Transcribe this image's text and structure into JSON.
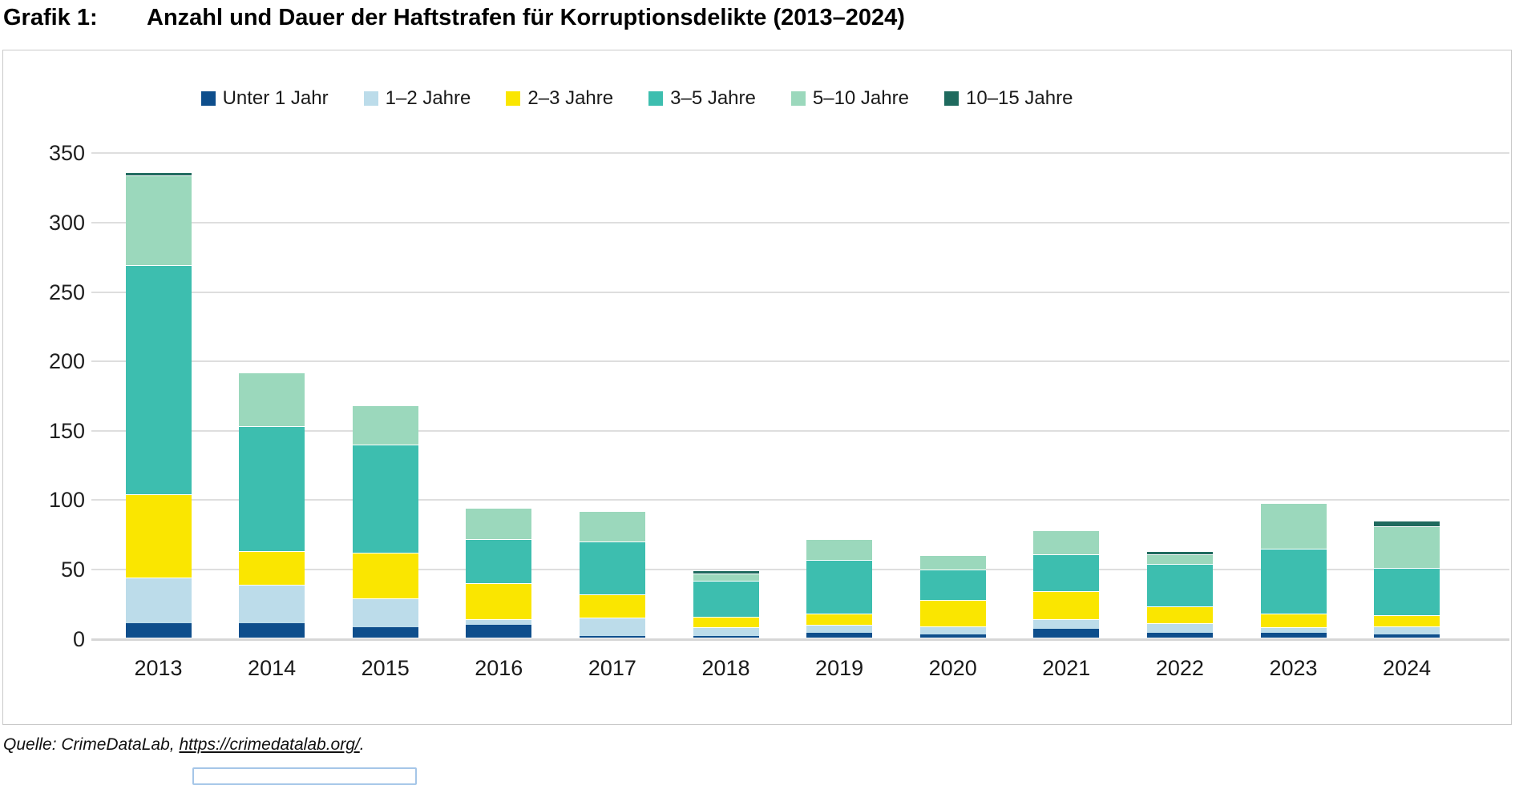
{
  "title": {
    "label": "Grafik 1:",
    "text": "Anzahl und Dauer der Haftstrafen für Korruptionsdelikte (2013–2024)"
  },
  "source": {
    "prefix": "Quelle: ",
    "name": "CrimeDataLab",
    "separator": ", ",
    "url": "https://crimedatalab.org/",
    "suffix": "."
  },
  "chart_data": {
    "type": "bar",
    "stacked": true,
    "title": "Anzahl und Dauer der Haftstrafen für Korruptionsdelikte (2013–2024)",
    "categories": [
      "2013",
      "2014",
      "2015",
      "2016",
      "2017",
      "2018",
      "2019",
      "2020",
      "2021",
      "2022",
      "2023",
      "2024"
    ],
    "series": [
      {
        "name": "Unter 1 Jahr",
        "color": "#0e4e8c",
        "values": [
          10,
          10,
          7,
          9,
          1,
          1,
          3,
          2,
          6,
          3,
          3,
          2
        ]
      },
      {
        "name": "1–2 Jahre",
        "color": "#bcdcea",
        "values": [
          33,
          28,
          21,
          4,
          13,
          6,
          6,
          6,
          7,
          7,
          4,
          6
        ]
      },
      {
        "name": "2–3 Jahre",
        "color": "#fae600",
        "values": [
          60,
          24,
          33,
          26,
          17,
          8,
          8,
          19,
          20,
          12,
          10,
          8
        ]
      },
      {
        "name": "3–5 Jahre",
        "color": "#3dbeaf",
        "values": [
          165,
          90,
          78,
          32,
          38,
          26,
          39,
          22,
          27,
          31,
          47,
          34
        ]
      },
      {
        "name": "5–10 Jahre",
        "color": "#9bd8bc",
        "values": [
          65,
          39,
          28,
          22,
          22,
          5,
          15,
          10,
          17,
          7,
          33,
          30
        ]
      },
      {
        "name": "10–15 Jahre",
        "color": "#1f6a5e",
        "values": [
          2,
          0,
          0,
          0,
          0,
          2,
          0,
          0,
          0,
          2,
          0,
          4
        ]
      }
    ],
    "totals": [
      335,
      191,
      167,
      93,
      91,
      48,
      71,
      59,
      77,
      62,
      97,
      84
    ],
    "ylabel": "",
    "xlabel": "",
    "ylim": [
      0,
      350
    ],
    "y_ticks": [
      0,
      50,
      100,
      150,
      200,
      250,
      300,
      350
    ],
    "grid": true,
    "legend_position": "top-center"
  }
}
